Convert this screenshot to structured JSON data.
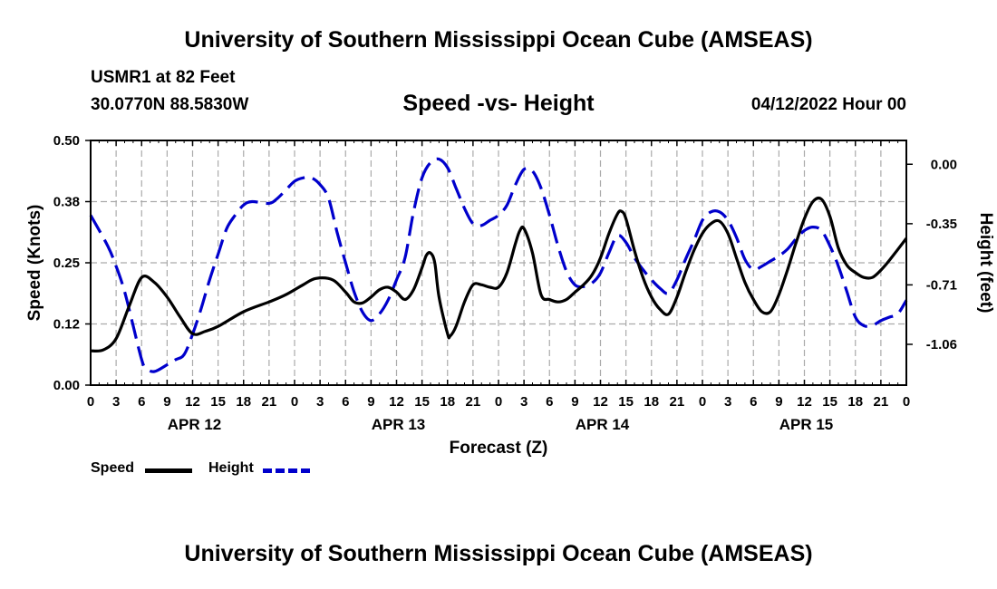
{
  "header": {
    "title": "University of Southern Mississippi Ocean Cube (AMSEAS)",
    "station": "USMR1 at 82 Feet",
    "coords": "30.0770N  88.5830W",
    "subtitle": "Speed -vs- Height",
    "datetime": "04/12/2022 Hour 00"
  },
  "footer": {
    "title": "University of Southern Mississippi Ocean Cube (AMSEAS)"
  },
  "legend": {
    "speed_label": "Speed",
    "height_label": "Height"
  },
  "colors": {
    "speed": "#000000",
    "height": "#0000cc",
    "grid": "#aaaaaa"
  },
  "chart_data": {
    "type": "line",
    "title": "Speed -vs- Height",
    "xlabel": "Forecast (Z)",
    "ylabel": "Speed (Knots)",
    "y2label": "Height (feet)",
    "x_range_hours": [
      0,
      96
    ],
    "x_tick_hours": [
      0,
      3,
      6,
      9,
      12,
      15,
      18,
      21,
      24,
      27,
      30,
      33,
      36,
      39,
      42,
      45,
      48,
      51,
      54,
      57,
      60,
      63,
      66,
      69,
      72,
      75,
      78,
      81,
      84,
      87,
      90,
      93,
      96
    ],
    "x_tick_labels": [
      "0",
      "3",
      "6",
      "9",
      "12",
      "15",
      "18",
      "21",
      "0",
      "3",
      "6",
      "9",
      "12",
      "15",
      "18",
      "21",
      "0",
      "3",
      "6",
      "9",
      "12",
      "15",
      "18",
      "21",
      "0",
      "3",
      "6",
      "9",
      "12",
      "15",
      "18",
      "21",
      "0"
    ],
    "date_labels": [
      {
        "hour": 12,
        "label": "APR 12"
      },
      {
        "hour": 36,
        "label": "APR 13"
      },
      {
        "hour": 60,
        "label": "APR 14"
      },
      {
        "hour": 84,
        "label": "APR 15"
      }
    ],
    "ylim": [
      0,
      0.5
    ],
    "y_ticks": [
      0,
      0.125,
      0.25,
      0.375,
      0.5
    ],
    "y_tick_labels": [
      "0.00",
      "0.12",
      "0.25",
      "0.38",
      "0.50"
    ],
    "y2lim": [
      -1.3,
      0.14
    ],
    "y2_ticks": [
      0,
      -0.35,
      -0.71,
      -1.06
    ],
    "y2_tick_labels": [
      "0.00",
      "-0.35",
      "-0.71",
      "-1.06"
    ],
    "series": [
      {
        "name": "Speed",
        "axis": "left",
        "style": "solid",
        "points": [
          [
            0,
            0.07
          ],
          [
            1.5,
            0.072
          ],
          [
            3,
            0.095
          ],
          [
            4.5,
            0.16
          ],
          [
            6,
            0.22
          ],
          [
            7.5,
            0.21
          ],
          [
            9,
            0.18
          ],
          [
            10.5,
            0.14
          ],
          [
            12,
            0.105
          ],
          [
            13.5,
            0.11
          ],
          [
            15,
            0.12
          ],
          [
            18,
            0.15
          ],
          [
            21,
            0.17
          ],
          [
            23,
            0.185
          ],
          [
            25,
            0.205
          ],
          [
            26.5,
            0.218
          ],
          [
            28.5,
            0.215
          ],
          [
            30,
            0.19
          ],
          [
            31,
            0.17
          ],
          [
            32,
            0.168
          ],
          [
            33,
            0.18
          ],
          [
            34,
            0.195
          ],
          [
            35,
            0.2
          ],
          [
            36,
            0.19
          ],
          [
            37,
            0.175
          ],
          [
            38,
            0.195
          ],
          [
            39,
            0.24
          ],
          [
            39.5,
            0.265
          ],
          [
            40,
            0.27
          ],
          [
            40.5,
            0.25
          ],
          [
            41,
            0.18
          ],
          [
            42,
            0.105
          ],
          [
            42.3,
            0.1
          ],
          [
            43,
            0.12
          ],
          [
            44,
            0.17
          ],
          [
            45,
            0.205
          ],
          [
            46,
            0.205
          ],
          [
            47,
            0.2
          ],
          [
            48,
            0.2
          ],
          [
            49,
            0.23
          ],
          [
            50,
            0.29
          ],
          [
            50.5,
            0.315
          ],
          [
            51,
            0.32
          ],
          [
            52,
            0.27
          ],
          [
            53,
            0.185
          ],
          [
            54,
            0.175
          ],
          [
            55,
            0.17
          ],
          [
            56,
            0.175
          ],
          [
            57,
            0.19
          ],
          [
            58,
            0.205
          ],
          [
            59,
            0.225
          ],
          [
            60,
            0.26
          ],
          [
            61,
            0.31
          ],
          [
            62,
            0.35
          ],
          [
            62.5,
            0.355
          ],
          [
            63,
            0.34
          ],
          [
            64,
            0.275
          ],
          [
            65,
            0.22
          ],
          [
            66,
            0.18
          ],
          [
            67,
            0.155
          ],
          [
            68,
            0.145
          ],
          [
            69,
            0.18
          ],
          [
            70,
            0.23
          ],
          [
            71,
            0.275
          ],
          [
            72,
            0.31
          ],
          [
            73,
            0.33
          ],
          [
            74,
            0.335
          ],
          [
            75,
            0.31
          ],
          [
            76,
            0.26
          ],
          [
            77,
            0.21
          ],
          [
            78,
            0.175
          ],
          [
            79,
            0.15
          ],
          [
            80,
            0.15
          ],
          [
            81,
            0.185
          ],
          [
            82,
            0.235
          ],
          [
            83,
            0.29
          ],
          [
            84,
            0.34
          ],
          [
            85,
            0.375
          ],
          [
            86,
            0.38
          ],
          [
            87,
            0.345
          ],
          [
            88,
            0.28
          ],
          [
            89,
            0.245
          ],
          [
            90,
            0.23
          ],
          [
            91,
            0.22
          ],
          [
            92,
            0.22
          ],
          [
            93,
            0.235
          ],
          [
            94,
            0.255
          ],
          [
            96,
            0.3
          ]
        ]
      },
      {
        "name": "Height",
        "axis": "right",
        "style": "dashed",
        "points": [
          [
            0,
            -0.3
          ],
          [
            2,
            -0.48
          ],
          [
            3,
            -0.6
          ],
          [
            4,
            -0.75
          ],
          [
            5,
            -0.95
          ],
          [
            6,
            -1.15
          ],
          [
            6.5,
            -1.2
          ],
          [
            7.5,
            -1.22
          ],
          [
            9,
            -1.18
          ],
          [
            10,
            -1.15
          ],
          [
            11,
            -1.12
          ],
          [
            12,
            -1.0
          ],
          [
            13,
            -0.85
          ],
          [
            14,
            -0.68
          ],
          [
            15,
            -0.53
          ],
          [
            16,
            -0.38
          ],
          [
            17,
            -0.3
          ],
          [
            18,
            -0.24
          ],
          [
            19,
            -0.22
          ],
          [
            21,
            -0.23
          ],
          [
            22,
            -0.2
          ],
          [
            23,
            -0.15
          ],
          [
            24,
            -0.1
          ],
          [
            25,
            -0.08
          ],
          [
            26,
            -0.08
          ],
          [
            27,
            -0.12
          ],
          [
            28,
            -0.2
          ],
          [
            29,
            -0.4
          ],
          [
            30,
            -0.58
          ],
          [
            31,
            -0.75
          ],
          [
            32,
            -0.87
          ],
          [
            33,
            -0.92
          ],
          [
            34,
            -0.88
          ],
          [
            35,
            -0.8
          ],
          [
            36,
            -0.68
          ],
          [
            37,
            -0.55
          ],
          [
            38,
            -0.28
          ],
          [
            39,
            -0.08
          ],
          [
            40,
            0.01
          ],
          [
            41,
            0.03
          ],
          [
            42,
            -0.02
          ],
          [
            43,
            -0.14
          ],
          [
            44,
            -0.26
          ],
          [
            45,
            -0.35
          ],
          [
            46,
            -0.36
          ],
          [
            47,
            -0.33
          ],
          [
            48,
            -0.3
          ],
          [
            49,
            -0.24
          ],
          [
            50,
            -0.12
          ],
          [
            51,
            -0.03
          ],
          [
            52,
            -0.04
          ],
          [
            53,
            -0.14
          ],
          [
            54,
            -0.3
          ],
          [
            55,
            -0.48
          ],
          [
            56,
            -0.63
          ],
          [
            57,
            -0.71
          ],
          [
            58,
            -0.72
          ],
          [
            59,
            -0.7
          ],
          [
            60,
            -0.64
          ],
          [
            61,
            -0.52
          ],
          [
            62,
            -0.42
          ],
          [
            63,
            -0.46
          ],
          [
            64,
            -0.55
          ],
          [
            65,
            -0.62
          ],
          [
            66,
            -0.68
          ],
          [
            67,
            -0.73
          ],
          [
            68,
            -0.76
          ],
          [
            69,
            -0.68
          ],
          [
            70,
            -0.56
          ],
          [
            71,
            -0.45
          ],
          [
            72,
            -0.33
          ],
          [
            73,
            -0.28
          ],
          [
            74,
            -0.28
          ],
          [
            75,
            -0.33
          ],
          [
            76,
            -0.43
          ],
          [
            77,
            -0.56
          ],
          [
            78,
            -0.62
          ],
          [
            79,
            -0.6
          ],
          [
            80,
            -0.57
          ],
          [
            81,
            -0.54
          ],
          [
            82,
            -0.5
          ],
          [
            83,
            -0.44
          ],
          [
            84,
            -0.39
          ],
          [
            85,
            -0.37
          ],
          [
            86,
            -0.39
          ],
          [
            87,
            -0.48
          ],
          [
            88,
            -0.6
          ],
          [
            89,
            -0.75
          ],
          [
            90,
            -0.9
          ],
          [
            91,
            -0.95
          ],
          [
            92,
            -0.95
          ],
          [
            93,
            -0.92
          ],
          [
            94,
            -0.9
          ],
          [
            95,
            -0.88
          ],
          [
            96,
            -0.8
          ]
        ]
      }
    ]
  }
}
